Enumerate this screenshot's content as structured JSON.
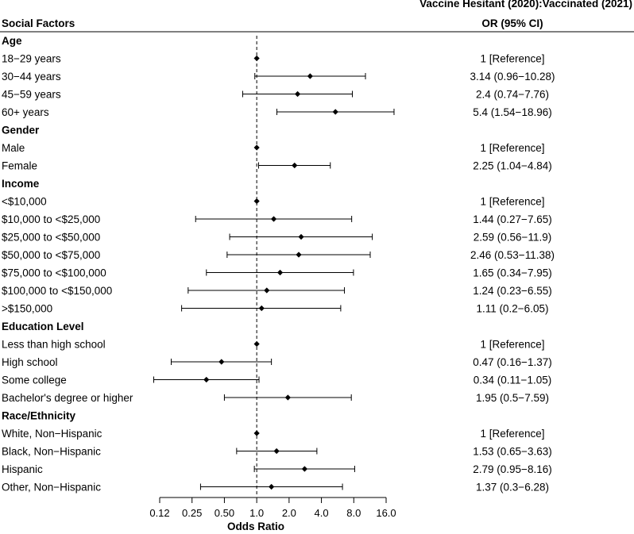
{
  "chart_data": {
    "type": "forest",
    "header": {
      "left": "Social Factors",
      "right_top": "Vaccine Hesitant (2020):Vaccinated (2021)",
      "right": "OR (95% CI)"
    },
    "xlabel": "Odds Ratio",
    "xscale": "log2",
    "xlim": [
      0.12,
      16.0
    ],
    "reference_line": 1.0,
    "ticks": [
      {
        "value": 0.125,
        "label": "0.12"
      },
      {
        "value": 0.25,
        "label": "0.25"
      },
      {
        "value": 0.5,
        "label": "0.50"
      },
      {
        "value": 1,
        "label": "1.0"
      },
      {
        "value": 2,
        "label": "2.0"
      },
      {
        "value": 4,
        "label": "4.0"
      },
      {
        "value": 8,
        "label": "8.0"
      },
      {
        "value": 16,
        "label": "16.0"
      }
    ],
    "groups": [
      {
        "title": "Age",
        "rows": [
          {
            "label": "18−29 years",
            "or": 1,
            "lo": 1,
            "hi": 1,
            "text": "1 [Reference]"
          },
          {
            "label": "30−44 years",
            "or": 3.14,
            "lo": 0.96,
            "hi": 10.28,
            "text": "3.14 (0.96−10.28)"
          },
          {
            "label": "45−59 years",
            "or": 2.4,
            "lo": 0.74,
            "hi": 7.76,
            "text": "2.4 (0.74−7.76)"
          },
          {
            "label": "60+ years",
            "or": 5.4,
            "lo": 1.54,
            "hi": 18.96,
            "text": "5.4 (1.54−18.96)"
          }
        ]
      },
      {
        "title": "Gender",
        "rows": [
          {
            "label": "Male",
            "or": 1,
            "lo": 1,
            "hi": 1,
            "text": "1 [Reference]"
          },
          {
            "label": "Female",
            "or": 2.25,
            "lo": 1.04,
            "hi": 4.84,
            "text": "2.25 (1.04−4.84)"
          }
        ]
      },
      {
        "title": "Income",
        "rows": [
          {
            "label": "<$10,000",
            "or": 1,
            "lo": 1,
            "hi": 1,
            "text": "1 [Reference]"
          },
          {
            "label": "$10,000 to <$25,000",
            "or": 1.44,
            "lo": 0.27,
            "hi": 7.65,
            "text": "1.44 (0.27−7.65)"
          },
          {
            "label": "$25,000 to <$50,000",
            "or": 2.59,
            "lo": 0.56,
            "hi": 11.9,
            "text": "2.59 (0.56−11.9)"
          },
          {
            "label": "$50,000 to <$75,000",
            "or": 2.46,
            "lo": 0.53,
            "hi": 11.38,
            "text": "2.46 (0.53−11.38)"
          },
          {
            "label": "$75,000 to <$100,000",
            "or": 1.65,
            "lo": 0.34,
            "hi": 7.95,
            "text": "1.65 (0.34−7.95)"
          },
          {
            "label": "$100,000 to <$150,000",
            "or": 1.24,
            "lo": 0.23,
            "hi": 6.55,
            "text": "1.24 (0.23−6.55)"
          },
          {
            "label": ">$150,000",
            "or": 1.11,
            "lo": 0.2,
            "hi": 6.05,
            "text": "1.11 (0.2−6.05)"
          }
        ]
      },
      {
        "title": "Education Level",
        "rows": [
          {
            "label": "Less than high school",
            "or": 1,
            "lo": 1,
            "hi": 1,
            "text": "1 [Reference]"
          },
          {
            "label": "High school",
            "or": 0.47,
            "lo": 0.16,
            "hi": 1.37,
            "text": "0.47 (0.16−1.37)"
          },
          {
            "label": "Some college",
            "or": 0.34,
            "lo": 0.11,
            "hi": 1.05,
            "text": "0.34 (0.11−1.05)"
          },
          {
            "label": "Bachelor's degree or higher",
            "or": 1.95,
            "lo": 0.5,
            "hi": 7.59,
            "text": "1.95 (0.5−7.59)"
          }
        ]
      },
      {
        "title": "Race/Ethnicity",
        "rows": [
          {
            "label": "White, Non−Hispanic",
            "or": 1,
            "lo": 1,
            "hi": 1,
            "text": "1 [Reference]"
          },
          {
            "label": "Black, Non−Hispanic",
            "or": 1.53,
            "lo": 0.65,
            "hi": 3.63,
            "text": "1.53 (0.65−3.63)"
          },
          {
            "label": "Hispanic",
            "or": 2.79,
            "lo": 0.95,
            "hi": 8.16,
            "text": "2.79 (0.95−8.16)"
          },
          {
            "label": "Other, Non−Hispanic",
            "or": 1.37,
            "lo": 0.3,
            "hi": 6.28,
            "text": "1.37 (0.3−6.28)"
          }
        ]
      }
    ]
  }
}
